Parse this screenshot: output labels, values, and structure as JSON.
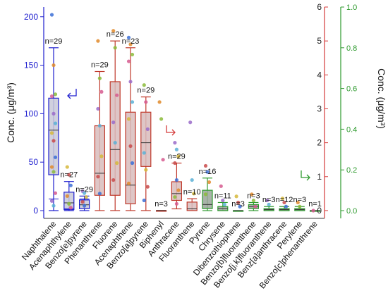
{
  "chart_data": {
    "type": "box",
    "y_axes": {
      "left": {
        "label": "Conc. (μg/m³)",
        "range": [
          -8,
          210
        ],
        "ticks": [
          0,
          50,
          100,
          150,
          200
        ],
        "color": "#1f1fcf"
      },
      "right_red": {
        "range": [
          -0.23,
          6.0
        ],
        "ticks": [
          0,
          1,
          2,
          3,
          4,
          5,
          6
        ],
        "color": "#d43a3a"
      },
      "right_green": {
        "label": "Conc. (μg/m³)",
        "range": [
          -0.038,
          1.0
        ],
        "ticks": [
          0.0,
          0.2,
          0.4,
          0.6,
          0.8,
          1.0
        ],
        "tick_labels": [
          "0.0",
          "0.2",
          "0.4",
          "0.6",
          "0.8",
          "1.0"
        ],
        "color": "#2e9a2e"
      }
    },
    "categories": [
      {
        "name": "Naphthalene",
        "axis": "left",
        "n_label": "n=29",
        "whisker_low": 0,
        "q1": 37,
        "median": 83,
        "q3": 116,
        "whisker_high": 168,
        "mean": 12,
        "points": [
          202,
          150,
          120,
          118,
          100,
          90,
          80,
          72,
          55,
          45,
          40,
          18,
          10,
          5
        ]
      },
      {
        "name": "Acenaphthylene",
        "axis": "left",
        "n_label": "n=27",
        "whisker_low": 0,
        "q1": 1,
        "median": 8,
        "q3": 19,
        "whisker_high": 30,
        "mean": 2,
        "points": [
          45,
          37,
          26,
          15,
          7,
          3
        ]
      },
      {
        "name": "Benzo[e]pyrene",
        "axis": "left",
        "n_label": "n=29",
        "whisker_low": 0,
        "q1": 2,
        "median": 6,
        "q3": 11,
        "whisker_high": 15,
        "mean": 12,
        "points": [
          20,
          18,
          14,
          9,
          5
        ]
      },
      {
        "name": "Phenanthrene",
        "axis": "right_red",
        "n_label": "n=29",
        "whisker_low": 0.0,
        "q1": 0.45,
        "median": 1.1,
        "q3": 2.5,
        "whisker_high": 4.1,
        "points": [
          5.0,
          3.9,
          3.5,
          3.0,
          2.5,
          1.6,
          1.0,
          0.5
        ]
      },
      {
        "name": "Fluorene",
        "axis": "right_red",
        "n_label": "n=26",
        "whisker_low": 0.0,
        "q1": 0.45,
        "median": 1.8,
        "q3": 3.8,
        "whisker_high": 5.0,
        "points": [
          5.3,
          4.8,
          3.4,
          2.6,
          2.0,
          1.4,
          0.9
        ]
      },
      {
        "name": "Acenaphthene",
        "axis": "right_red",
        "n_label": "n=23",
        "whisker_low": 0.0,
        "q1": 0.2,
        "median": 0.75,
        "q3": 2.9,
        "whisker_high": 4.8,
        "points": [
          5.1,
          4.9,
          4.6,
          4.4,
          3.8,
          3.2,
          2.7,
          1.9,
          1.4,
          0.8
        ]
      },
      {
        "name": "Benzo[a]pyrene",
        "axis": "right_red",
        "n_label": "n=29",
        "whisker_low": 0.0,
        "q1": 1.3,
        "median": 2.0,
        "q3": 2.9,
        "whisker_high": 3.35,
        "points": [
          3.7,
          3.2,
          2.4,
          1.7,
          1.2,
          0.7,
          0.3
        ]
      },
      {
        "name": "Biphenyl",
        "axis": "right_red",
        "n_label": "n=3",
        "whisker_low": 0.0,
        "q1": 0.0,
        "median": 0.0,
        "q3": 0.0,
        "whisker_high": 0.0,
        "points": [
          3.2,
          2.7,
          1.5
        ]
      },
      {
        "name": "Anthracene",
        "axis": "right_red",
        "n_label": "n=29",
        "whisker_low": 0.05,
        "q1": 0.3,
        "median": 0.5,
        "q3": 0.85,
        "whisker_high": 1.4,
        "points": [
          2.0,
          1.8,
          1.6,
          1.4,
          0.9,
          0.6,
          0.4,
          0.2
        ]
      },
      {
        "name": "Fluoranthene",
        "axis": "right_red",
        "n_label": "n=10",
        "whisker_low": 0.0,
        "q1": 0.0,
        "median": 0.05,
        "q3": 0.25,
        "whisker_high": 0.35,
        "points": [
          2.6,
          0.9,
          0.5
        ]
      },
      {
        "name": "Pyrene",
        "axis": "right_green",
        "n_label": "n=16",
        "whisker_low": 0.0,
        "q1": 0.01,
        "median": 0.03,
        "q3": 0.1,
        "whisker_high": 0.16,
        "points": [
          0.22,
          0.19,
          0.14,
          0.08
        ]
      },
      {
        "name": "Chrysene",
        "axis": "right_green",
        "n_label": "n=11",
        "whisker_low": 0.0,
        "q1": 0.0,
        "median": 0.01,
        "q3": 0.02,
        "whisker_high": 0.04,
        "points": [
          0.12,
          0.05,
          0.03
        ]
      },
      {
        "name": "Dibenzothiophene",
        "axis": "right_green",
        "n_label": "n=3",
        "whisker_low": 0.0,
        "q1": 0.0,
        "median": 0.0,
        "q3": 0.0,
        "whisker_high": 0.0,
        "points": [
          0.07,
          0.04,
          0.02
        ]
      },
      {
        "name": "Benzo[b]fluoranthene",
        "axis": "right_green",
        "n_label": "n=3",
        "whisker_low": 0.0,
        "q1": 0.01,
        "median": 0.02,
        "q3": 0.03,
        "whisker_high": 0.04,
        "points": [
          0.08,
          0.05,
          0.02
        ]
      },
      {
        "name": "Benzo[j,k]fluoranthene",
        "axis": "right_green",
        "n_label": "n=3",
        "whisker_low": 0.0,
        "q1": 0.0,
        "median": 0.005,
        "q3": 0.01,
        "whisker_high": 0.02,
        "points": [
          0.05,
          0.03
        ]
      },
      {
        "name": "Benz[a]anthracene",
        "axis": "right_green",
        "n_label": "n=12",
        "whisker_low": 0.0,
        "q1": 0.0,
        "median": 0.005,
        "q3": 0.01,
        "whisker_high": 0.02,
        "points": [
          0.06,
          0.04,
          0.02
        ]
      },
      {
        "name": "Perylene",
        "axis": "right_green",
        "n_label": "n=3",
        "whisker_low": 0.0,
        "q1": 0.0,
        "median": 0.005,
        "q3": 0.01,
        "whisker_high": 0.02,
        "points": [
          0.04,
          0.02
        ]
      },
      {
        "name": "Benzo[c]phenanthrene",
        "axis": "right_green",
        "n_label": "n=1",
        "whisker_low": 0.0,
        "q1": 0.0,
        "median": 0.0,
        "q3": 0.0,
        "whisker_high": 0.0,
        "points": [
          0.0
        ]
      }
    ],
    "colors": {
      "left_box_stroke": "#1f1fcf",
      "left_box_fill": "#c8c8d8",
      "red_box_stroke": "#c0392b",
      "red_box_fill": "#d8bcbc",
      "green_box_stroke": "#2e9a2e",
      "green_box_fill": "#9aa69a",
      "point_palette": [
        "#3b6fd6",
        "#e08a2a",
        "#8bbb3a",
        "#d65b8f",
        "#9a6bc9",
        "#5ab0d6",
        "#d6b83b",
        "#c94a4a"
      ]
    }
  }
}
